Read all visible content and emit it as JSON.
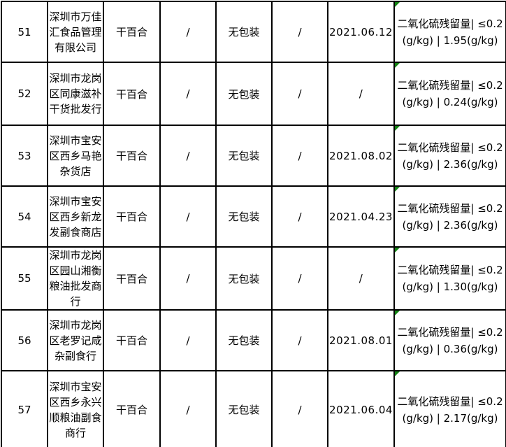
{
  "table": {
    "description_rows": [
      {
        "seq": "51",
        "company": "深圳市万佳汇食品管理有限公司",
        "product": "干百合",
        "spec": "/",
        "packaging": "无包装",
        "trademark": "/",
        "date": "2021.06.12",
        "result": "二氧化硫残留量| ≤0.2 (g/kg) | 1.95(g/kg)",
        "has_error_indicator": true
      },
      {
        "seq": "52",
        "company": "深圳市龙岗区同康滋补干货批发行",
        "product": "干百合",
        "spec": "/",
        "packaging": "无包装",
        "trademark": "/",
        "date": "/",
        "result": "二氧化硫残留量| ≤0.2 (g/kg) | 0.24(g/kg)",
        "has_error_indicator": true
      },
      {
        "seq": "53",
        "company": "深圳市宝安区西乡马艳杂货店",
        "product": "干百合",
        "spec": "/",
        "packaging": "无包装",
        "trademark": "/",
        "date": "2021.08.02",
        "result": "二氧化硫残留量| ≤0.2 (g/kg) | 2.36(g/kg)",
        "has_error_indicator": true
      },
      {
        "seq": "54",
        "company": "深圳市宝安区西乡新龙发副食商店",
        "product": "干百合",
        "spec": "/",
        "packaging": "无包装",
        "trademark": "/",
        "date": "2021.04.23",
        "result": "二氧化硫残留量| ≤0.2 (g/kg) | 2.36(g/kg)",
        "has_error_indicator": true
      },
      {
        "seq": "55",
        "company": "深圳市龙岗区园山湘衡粮油批发商行",
        "product": "干百合",
        "spec": "/",
        "packaging": "无包装",
        "trademark": "/",
        "date": "/",
        "result": "二氧化硫残留量| ≤0.2 (g/kg) | 1.30(g/kg)",
        "has_error_indicator": true
      },
      {
        "seq": "56",
        "company": "深圳市龙岗区老罗记咸杂副食行",
        "product": "干百合",
        "spec": "/",
        "packaging": "无包装",
        "trademark": "/",
        "date": "2021.08.01",
        "result": "二氧化硫残留量| ≤0.2 (g/kg) | 0.36(g/kg)",
        "has_error_indicator": true
      },
      {
        "seq": "57",
        "company": "深圳市宝安区西乡永兴顺粮油副食商行",
        "product": "干百合",
        "spec": "/",
        "packaging": "无包装",
        "trademark": "/",
        "date": "2021.06.04",
        "result": "二氧化硫残留量| ≤0.2 (g/kg) | 2.17(g/kg)",
        "has_error_indicator": true
      }
    ],
    "colors": {
      "grid_line": "#000000",
      "cell_background": "#ffffff",
      "text": "#000000",
      "error_indicator": "#128212"
    }
  }
}
